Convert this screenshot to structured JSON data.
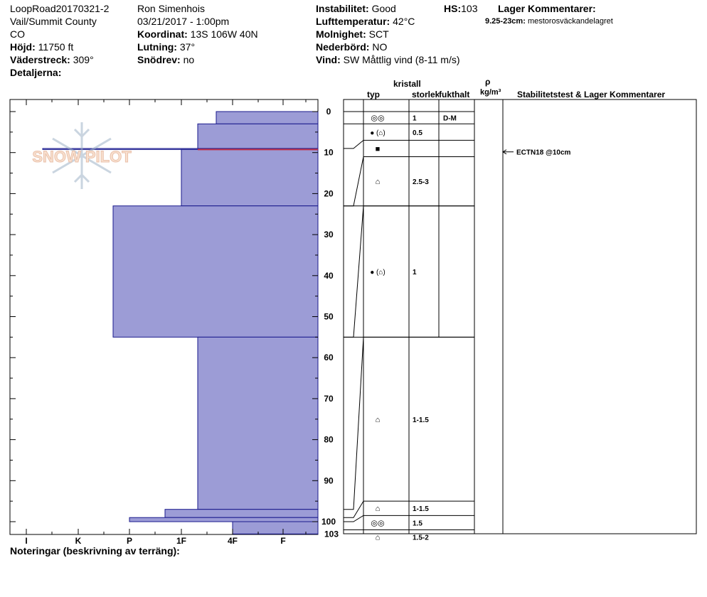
{
  "header": {
    "col1": {
      "site_id": "LoopRoad20170321-2",
      "location": "Vail/Summit County",
      "state": "CO",
      "elevation_label": "Höjd:",
      "elevation_value": "11750 ft",
      "aspect_label": "Väderstreck:",
      "aspect_value": "309°",
      "details_label": "Detaljerna:"
    },
    "col2": {
      "observer": "Ron Simenhois",
      "datetime": "03/21/2017 - 1:00pm",
      "coord_label": "Koordinat:",
      "coord_value": "13S 106W 40N",
      "slope_label": "Lutning:",
      "slope_value": "37°",
      "drift_label": "Snödrev:",
      "drift_value": "no"
    },
    "col3": {
      "stability_label": "Instabilitet:",
      "stability_value": "Good",
      "air_temp_label": "Lufttemperatur:",
      "air_temp_value": "42°C",
      "sky_label": "Molnighet:",
      "sky_value": "SCT",
      "precip_label": "Nederbörd:",
      "precip_value": "NO",
      "wind_label": "Vind:",
      "wind_value": "SW  Måttlig vind (8-11 m/s)"
    },
    "col4": {
      "hs_label": "HS:",
      "hs_value": "103",
      "layer_comments_label": "Lager Kommentarer:",
      "layer_comment_depth": "9.25-23cm:",
      "layer_comment_text": "mestorosväckandelagret"
    }
  },
  "table_headers": {
    "type": "typ",
    "crystal": "kristall",
    "size": "storlek",
    "moisture": "fukthalt",
    "rho": "ρ",
    "density_unit": "kg/m³",
    "stability": "Stabilitetstest & Lager Kommentarer"
  },
  "watermark": "SNOW PILOT",
  "footer_notes_label": "Noteringar (beskrivning av terräng):",
  "colors": {
    "bar_fill": "#9c9cd6",
    "bar_stroke": "#1a1a8c",
    "weak_layer_line": "#c0304a"
  },
  "chart_data": {
    "type": "bar",
    "orientation": "horizontal-profile",
    "y_axis": {
      "label": "",
      "min": 0,
      "max": 103,
      "ticks": [
        0,
        10,
        20,
        30,
        40,
        50,
        60,
        70,
        80,
        90,
        100
      ],
      "extra_tick": 103
    },
    "x_axis": {
      "label": "",
      "categories": [
        "I",
        "K",
        "P",
        "1F",
        "4F",
        "F"
      ]
    },
    "hardness_layers": [
      {
        "top": 0,
        "bottom": 3,
        "hardness": "4F+"
      },
      {
        "top": 3,
        "bottom": 9,
        "hardness": "1F-"
      },
      {
        "top": 9,
        "bottom": 9.25,
        "hardness": "I-"
      },
      {
        "top": 9.25,
        "bottom": 23,
        "hardness": "1F"
      },
      {
        "top": 23,
        "bottom": 55,
        "hardness": "P+"
      },
      {
        "top": 55,
        "bottom": 97,
        "hardness": "1F-"
      },
      {
        "top": 97,
        "bottom": 99,
        "hardness": "1F+"
      },
      {
        "top": 99,
        "bottom": 100,
        "hardness": "P"
      },
      {
        "top": 100,
        "bottom": 103,
        "hardness": "4F"
      }
    ],
    "weak_layer_depth": 9.25
  },
  "layers_table": [
    {
      "top": 0,
      "bottom": 3,
      "type_symbol": "◎◎",
      "size": "1",
      "moisture": "D-M"
    },
    {
      "top": 3,
      "bottom": 7,
      "type_symbol": "● (⌂)",
      "size": "0.5",
      "moisture": ""
    },
    {
      "top": 7,
      "bottom": 11,
      "type_symbol": "■",
      "size": "",
      "moisture": ""
    },
    {
      "top": 11,
      "bottom": 23,
      "type_symbol": "⌂",
      "size": "2.5-3",
      "moisture": ""
    },
    {
      "top": 23,
      "bottom": 55,
      "type_symbol": "● (⌂)",
      "size": "1",
      "moisture": ""
    },
    {
      "top": 55,
      "bottom": 95,
      "type_symbol": "⌂",
      "size": "1-1.5",
      "moisture": ""
    },
    {
      "top": 95,
      "bottom": 98.5,
      "type_symbol": "⌂",
      "size": "1-1.5",
      "moisture": ""
    },
    {
      "top": 98.5,
      "bottom": 102,
      "type_symbol": "◎◎",
      "size": "1.5",
      "moisture": ""
    },
    {
      "top": 102,
      "bottom": 105.5,
      "type_symbol": "⌂",
      "size": "1.5-2",
      "moisture": ""
    }
  ],
  "layer_depths_actual": [
    0,
    3,
    9,
    9.25,
    23,
    55,
    97,
    99,
    100,
    103
  ],
  "stability_test": {
    "text": "ECTN18 @10cm",
    "depth": 10
  }
}
